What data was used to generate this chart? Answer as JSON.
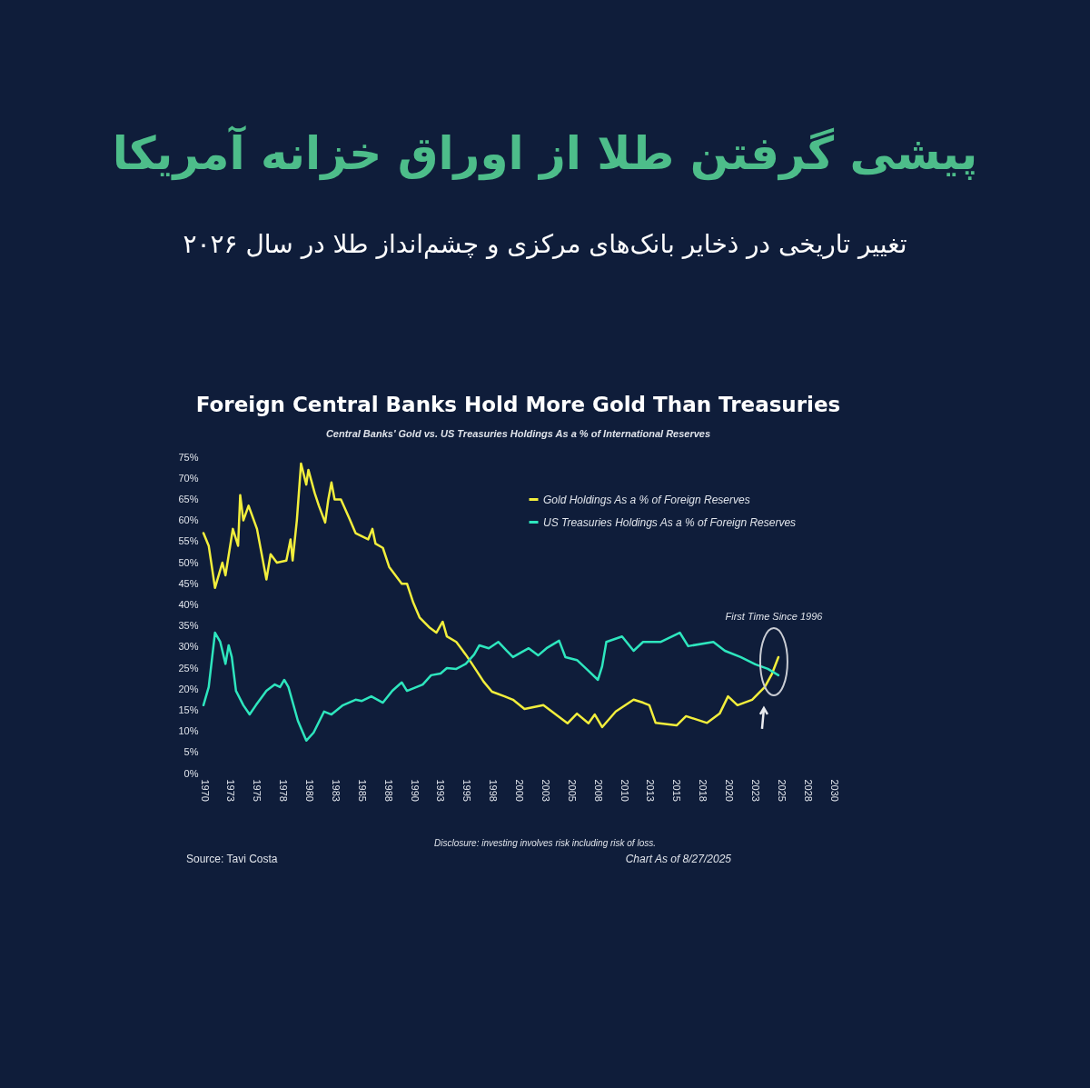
{
  "chart_data": {
    "type": "line",
    "title": "پیشی گرفتن طلا از اوراق خزانه آمریکا",
    "subtitle": "تغییر تاریخی در ذخایر بانک‌های مرکزی  و چشم‌انداز طلا در سال ۲۰۲۶",
    "annotations": [
      "Foreign Central Banks Hold More Gold Than Treasuries",
      "Central Banks' Gold vs. US Treasuries Holdings As a % of International Reserves",
      "Disclosure: investing involves risk including risk of loss.",
      "Source: Tavi Costa",
      "Chart As of 8/27/2025",
      "First Time Since 1996"
    ],
    "xlim": [
      1970,
      2030
    ],
    "xticks": [
      1970,
      {
        "value": 1972.5,
        "label": "1973"
      },
      1975,
      {
        "value": 1977.5,
        "label": "1978"
      },
      1980,
      {
        "value": 1982.5,
        "label": "1983"
      },
      1985,
      {
        "value": 1987.5,
        "label": "1988"
      },
      1990,
      {
        "value": 1992.5,
        "label": "1993"
      },
      1995,
      {
        "value": 1997.5,
        "label": "1998"
      },
      2000,
      {
        "value": 2002.5,
        "label": "2003"
      },
      2005,
      {
        "value": 2007.5,
        "label": "2008"
      },
      2010,
      {
        "value": 2012.5,
        "label": "2013"
      },
      2015,
      {
        "value": 2017.5,
        "label": "2018"
      },
      2020,
      {
        "value": 2022.5,
        "label": "2023"
      },
      2025,
      {
        "value": 2027.5,
        "label": "2028"
      },
      2030
    ],
    "ylim": [
      0,
      75
    ],
    "yticks": [
      {
        "value": 0,
        "label": "0%"
      },
      {
        "value": 5,
        "label": "5%"
      },
      {
        "value": 10,
        "label": "10%"
      },
      {
        "value": 15,
        "label": "15%"
      },
      {
        "value": 20,
        "label": "20%"
      },
      {
        "value": 25,
        "label": "25%"
      },
      {
        "value": 30,
        "label": "30%"
      },
      {
        "value": 35,
        "label": "35%"
      },
      {
        "value": 40,
        "label": "40%"
      },
      {
        "value": 45,
        "label": "45%"
      },
      {
        "value": 50,
        "label": "50%"
      },
      {
        "value": 55,
        "label": "55%"
      },
      {
        "value": 60,
        "label": "60%"
      },
      {
        "value": 65,
        "label": "65%"
      },
      {
        "value": 70,
        "label": "70%"
      },
      {
        "value": 75,
        "label": "75%"
      }
    ],
    "grid": false,
    "legend": "top right",
    "marker": "none",
    "line_style": "solid",
    "series": [
      {
        "name": "Gold Holdings As a % of Foreign Reserves",
        "color": "#f2ee3c",
        "x": [
          1970,
          1970.5,
          1971.1,
          1971.8,
          1972.1,
          1972.8,
          1973.3,
          1973.5,
          1973.8,
          1974.3,
          1975.1,
          1976,
          1976.4,
          1977,
          1977.9,
          1978.3,
          1978.5,
          1978.9,
          1979.3,
          1979.8,
          1980,
          1980.6,
          1981,
          1981.6,
          1981.9,
          1982.2,
          1982.5,
          1983.1,
          1983.9,
          1984.5,
          1985.7,
          1986.1,
          1986.4,
          1987.1,
          1987.7,
          1988.9,
          1989.4,
          1990,
          1990.6,
          1991.5,
          1992.2,
          1992.8,
          1993.2,
          1994.1,
          1995,
          1995.6,
          1996.7,
          1997.5,
          1998.7,
          1999.5,
          2000.6,
          2002.4,
          2004.7,
          2005.6,
          2006.7,
          2007.3,
          2008,
          2009.3,
          2011,
          2011.9,
          2012.5,
          2013.1,
          2015.1,
          2016,
          2018,
          2019.2,
          2020,
          2020.9,
          2022.3,
          2023.5,
          2024.2,
          2024.8
        ],
        "values": [
          57,
          54,
          44,
          50,
          47,
          58,
          54,
          66,
          60,
          63.5,
          58,
          46,
          52,
          50,
          50.5,
          55.5,
          50.5,
          60,
          73.5,
          68.5,
          72,
          66.5,
          63.5,
          59.5,
          65,
          69,
          65,
          65,
          60.5,
          57,
          55.5,
          58,
          54.5,
          53.5,
          49,
          45,
          45,
          40.5,
          37,
          34.7,
          33.4,
          36,
          32.5,
          31.2,
          28.2,
          26,
          21.8,
          19.4,
          18.3,
          17.5,
          15.3,
          16.2,
          11.9,
          14.2,
          11.9,
          14,
          11,
          14.7,
          17.5,
          16.8,
          16.2,
          12,
          11.4,
          13.6,
          12,
          14.2,
          18.3,
          16.2,
          17.5,
          20.5,
          23.7,
          27.6
        ]
      },
      {
        "name": "US Treasuries Holdings As a % of Foreign Reserves",
        "color": "#2ee6be",
        "x": [
          1970,
          1970.5,
          1971.1,
          1971.6,
          1972.1,
          1972.4,
          1972.7,
          1973.1,
          1973.8,
          1974.4,
          1975,
          1976,
          1976.8,
          1977.3,
          1977.7,
          1978.1,
          1979,
          1979.8,
          1980.5,
          1981.5,
          1982.2,
          1983.3,
          1984.5,
          1985.1,
          1986,
          1987.1,
          1988,
          1988.9,
          1989.4,
          1990.9,
          1991.7,
          1992.6,
          1993.2,
          1994.1,
          1995,
          1995.8,
          1996.3,
          1997.2,
          1998.1,
          1998.9,
          1999.5,
          2001,
          2001.9,
          2002.7,
          2003.9,
          2004.5,
          2005.6,
          2006.5,
          2007.6,
          2008,
          2008.4,
          2009.9,
          2011,
          2011.9,
          2013.6,
          2015.4,
          2016.2,
          2018.6,
          2019.7,
          2021.2,
          2022.6,
          2023.8,
          2024.8
        ],
        "values": [
          16.2,
          20.5,
          33.4,
          31.2,
          26,
          30.4,
          27.6,
          19.6,
          16.2,
          14,
          16.2,
          19.6,
          21.1,
          20.5,
          22.2,
          20.5,
          12.5,
          7.8,
          9.7,
          14.7,
          14,
          16.2,
          17.5,
          17.2,
          18.3,
          16.8,
          19.6,
          21.6,
          19.6,
          21.1,
          23.3,
          23.7,
          25,
          24.8,
          26,
          28.2,
          30.4,
          29.7,
          31.2,
          29.1,
          27.6,
          29.7,
          28,
          29.7,
          31.5,
          27.6,
          26.9,
          24.8,
          22.2,
          25.4,
          31.2,
          32.5,
          29.1,
          31.2,
          31.2,
          33.4,
          30.2,
          31.2,
          29.1,
          27.6,
          25.9,
          24.8,
          23.3
        ]
      }
    ]
  }
}
